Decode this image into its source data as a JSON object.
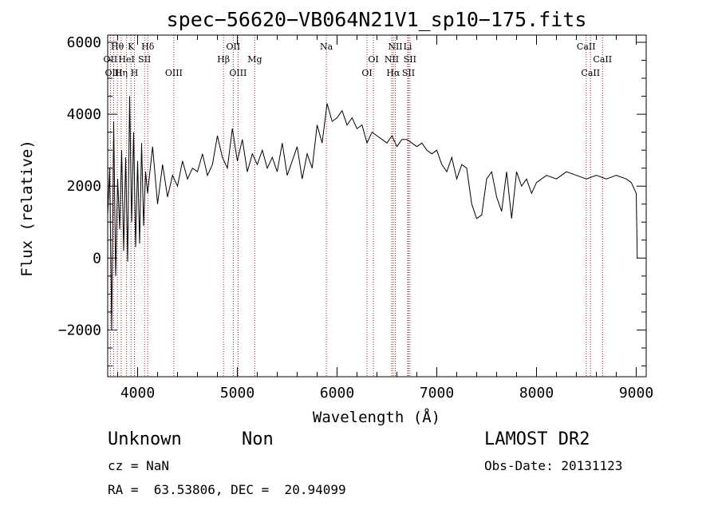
{
  "chart_data": {
    "type": "line",
    "title": "spec−56620−VB064N21V1_sp10−175.fits",
    "xlabel": "Wavelength (Å)",
    "ylabel": "Flux (relative)",
    "xlim": [
      3700,
      9100
    ],
    "ylim": [
      -3300,
      6200
    ],
    "x_ticks": [
      4000,
      5000,
      6000,
      7000,
      8000,
      9000
    ],
    "y_ticks": [
      -2000,
      0,
      2000,
      4000,
      6000
    ],
    "y_tick_labels": [
      "−2000",
      "0",
      "2000",
      "4000",
      "6000"
    ],
    "grid": false,
    "line_color": "#000000",
    "marker_color": "#a02020",
    "spectrum": {
      "x": [
        3700,
        3720,
        3740,
        3760,
        3780,
        3800,
        3820,
        3840,
        3860,
        3880,
        3900,
        3920,
        3940,
        3960,
        3980,
        4000,
        4020,
        4040,
        4060,
        4080,
        4100,
        4150,
        4200,
        4250,
        4300,
        4350,
        4400,
        4450,
        4500,
        4550,
        4600,
        4650,
        4700,
        4750,
        4800,
        4850,
        4900,
        4950,
        5000,
        5050,
        5100,
        5150,
        5200,
        5250,
        5300,
        5350,
        5400,
        5450,
        5500,
        5550,
        5600,
        5650,
        5700,
        5750,
        5800,
        5850,
        5900,
        5950,
        6000,
        6050,
        6100,
        6150,
        6200,
        6250,
        6300,
        6350,
        6400,
        6450,
        6500,
        6550,
        6600,
        6650,
        6700,
        6750,
        6800,
        6850,
        6900,
        6950,
        7000,
        7050,
        7100,
        7150,
        7200,
        7250,
        7300,
        7350,
        7400,
        7450,
        7500,
        7550,
        7600,
        7650,
        7700,
        7750,
        7800,
        7850,
        7900,
        7950,
        8000,
        8100,
        8200,
        8300,
        8400,
        8500,
        8600,
        8700,
        8800,
        8900,
        8950,
        9000,
        9010
      ],
      "y": [
        1200,
        2500,
        -2000,
        3800,
        -500,
        2200,
        800,
        3000,
        200,
        2800,
        -100,
        4500,
        1000,
        3500,
        300,
        2700,
        400,
        3200,
        900,
        2400,
        1800,
        3100,
        1500,
        2600,
        1700,
        2300,
        2000,
        2700,
        2200,
        2500,
        2400,
        2900,
        2300,
        2600,
        3400,
        2800,
        2500,
        3600,
        2700,
        3300,
        2400,
        2900,
        2600,
        3000,
        2500,
        2800,
        2400,
        3200,
        2300,
        2700,
        3100,
        2200,
        2900,
        2500,
        3700,
        3200,
        4300,
        3800,
        3900,
        4100,
        3700,
        3900,
        3600,
        3700,
        3200,
        3500,
        3400,
        3300,
        3200,
        3400,
        3100,
        3300,
        3300,
        3200,
        3100,
        3200,
        3000,
        2900,
        3000,
        2600,
        2400,
        2800,
        2200,
        2600,
        2500,
        1500,
        1100,
        1200,
        2200,
        2400,
        1700,
        1300,
        2400,
        1100,
        2400,
        2000,
        2200,
        1800,
        2100,
        2300,
        2200,
        2400,
        2300,
        2200,
        2300,
        2200,
        2300,
        2200,
        2100,
        1800,
        0
      ]
    },
    "lines": [
      {
        "label": "Hθ",
        "wl": 3797,
        "row": 0
      },
      {
        "label": "K",
        "wl": 3934,
        "row": 0
      },
      {
        "label": "Hδ",
        "wl": 4102,
        "row": 0
      },
      {
        "label": "OII",
        "wl": 4959,
        "row": 0
      },
      {
        "label": "Na",
        "wl": 5893,
        "row": 0
      },
      {
        "label": "NII",
        "wl": 6584,
        "row": 0
      },
      {
        "label": "Li",
        "wl": 6708,
        "row": 0
      },
      {
        "label": "CaII",
        "wl": 8498,
        "row": 0
      },
      {
        "label": "OII",
        "wl": 3727,
        "row": 1
      },
      {
        "label": "HeI",
        "wl": 3889,
        "row": 1
      },
      {
        "label": "SII",
        "wl": 4070,
        "row": 1
      },
      {
        "label": "Hβ",
        "wl": 4861,
        "row": 1
      },
      {
        "label": "Mg",
        "wl": 5175,
        "row": 1
      },
      {
        "label": "OI",
        "wl": 6364,
        "row": 1
      },
      {
        "label": "NII",
        "wl": 6548,
        "row": 1
      },
      {
        "label": "SII",
        "wl": 6731,
        "row": 1
      },
      {
        "label": "CaII",
        "wl": 8662,
        "row": 1
      },
      {
        "label": "OIII",
        "wl": 3760,
        "row": 2
      },
      {
        "label": "Hη",
        "wl": 3835,
        "row": 2
      },
      {
        "label": "H",
        "wl": 3968,
        "row": 2
      },
      {
        "label": "OIII",
        "wl": 4363,
        "row": 2
      },
      {
        "label": "OIII",
        "wl": 5007,
        "row": 2
      },
      {
        "label": "OI",
        "wl": 6300,
        "row": 2
      },
      {
        "label": "Hα",
        "wl": 6563,
        "row": 2
      },
      {
        "label": "SII",
        "wl": 6716,
        "row": 2
      },
      {
        "label": "CaII",
        "wl": 8542,
        "row": 2
      }
    ]
  },
  "info": {
    "class_label": "Unknown",
    "subclass_label": "Non",
    "survey": "LAMOST DR2",
    "cz": "cz = NaN",
    "obs_date": "Obs-Date: 20131123",
    "coords": "RA =  63.53806, DEC =  20.94099"
  }
}
